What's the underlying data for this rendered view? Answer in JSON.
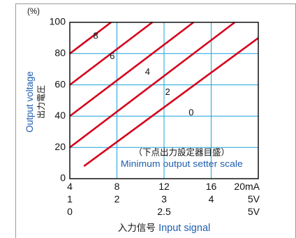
{
  "chart_data": {
    "type": "line",
    "y_unit": "(%)",
    "y_ticks": [
      0,
      20,
      40,
      60,
      80,
      100
    ],
    "ylim": [
      0,
      100
    ],
    "x_ticks_mA": [
      "4",
      "8",
      "12",
      "16",
      "20mA"
    ],
    "x_ticks_1_5V": [
      "1",
      "2",
      "3",
      "4",
      "5V"
    ],
    "x_ticks_0_5V": [
      "0",
      "2.5",
      "5V"
    ],
    "xlim": [
      4,
      20
    ],
    "xlabel_jp": "入力信号",
    "xlabel_en": "Input signal",
    "ylabel_en": "Output voltage",
    "ylabel_jp": "出力電圧",
    "annotation_jp": "（下点出力設定器目盛）",
    "annotation_en": "Minimum output setter scale",
    "grid": true,
    "line_color": "#d6001c",
    "series": [
      {
        "name": "8",
        "x": [
          4,
          7.5
        ],
        "y": [
          80,
          100
        ]
      },
      {
        "name": "6",
        "x": [
          4,
          11
        ],
        "y": [
          60,
          100
        ]
      },
      {
        "name": "4",
        "x": [
          4,
          14.5
        ],
        "y": [
          40,
          100
        ]
      },
      {
        "name": "2",
        "x": [
          4,
          18
        ],
        "y": [
          20,
          100
        ]
      },
      {
        "name": "0",
        "x": [
          5.2,
          20
        ],
        "y": [
          8,
          90
        ]
      }
    ]
  }
}
